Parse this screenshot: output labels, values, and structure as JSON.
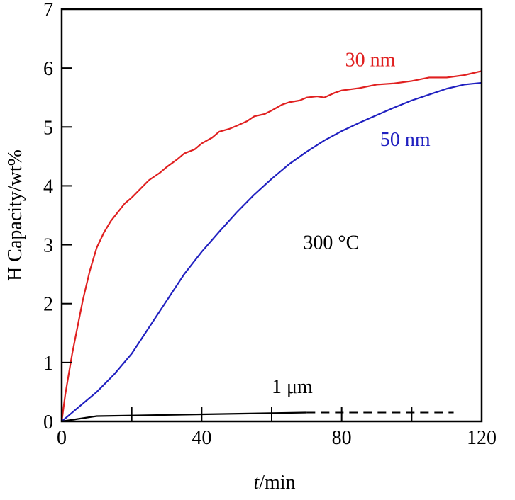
{
  "chart_data": {
    "type": "line",
    "title": "",
    "xlabel_italic": "t",
    "xlabel_rest": "/min",
    "ylabel": "H Capacity/wt%",
    "xlim": [
      0,
      120
    ],
    "ylim": [
      0,
      7
    ],
    "xticks": [
      0,
      40,
      80,
      120
    ],
    "xticks_minor": [
      20,
      60,
      100
    ],
    "yticks": [
      0,
      1,
      2,
      3,
      4,
      5,
      6,
      7
    ],
    "grid": false,
    "series": [
      {
        "name": "30 nm",
        "color": "#e02020",
        "x": [
          0,
          1,
          2,
          3,
          4,
          5,
          6,
          7,
          8,
          9,
          10,
          12,
          14,
          16,
          18,
          20,
          22,
          25,
          28,
          30,
          33,
          35,
          38,
          40,
          43,
          45,
          48,
          50,
          53,
          55,
          58,
          60,
          63,
          65,
          68,
          70,
          73,
          75,
          78,
          80,
          85,
          90,
          95,
          100,
          105,
          110,
          115,
          120
        ],
        "y": [
          0,
          0.45,
          0.8,
          1.15,
          1.45,
          1.75,
          2.05,
          2.3,
          2.55,
          2.75,
          2.95,
          3.2,
          3.4,
          3.55,
          3.7,
          3.8,
          3.92,
          4.1,
          4.22,
          4.32,
          4.45,
          4.55,
          4.62,
          4.72,
          4.82,
          4.92,
          4.97,
          5.02,
          5.1,
          5.18,
          5.22,
          5.28,
          5.38,
          5.42,
          5.45,
          5.5,
          5.52,
          5.5,
          5.58,
          5.62,
          5.66,
          5.72,
          5.74,
          5.78,
          5.84,
          5.84,
          5.88,
          5.95
        ],
        "label_pos": [
          81,
          6.15
        ]
      },
      {
        "name": "50 nm",
        "color": "#2020c0",
        "x": [
          0,
          5,
          10,
          15,
          20,
          25,
          30,
          35,
          40,
          45,
          50,
          55,
          60,
          65,
          70,
          75,
          80,
          85,
          90,
          95,
          100,
          105,
          110,
          115,
          120
        ],
        "y": [
          0,
          0.25,
          0.5,
          0.8,
          1.15,
          1.6,
          2.05,
          2.5,
          2.88,
          3.22,
          3.55,
          3.85,
          4.12,
          4.37,
          4.58,
          4.77,
          4.93,
          5.07,
          5.2,
          5.33,
          5.45,
          5.55,
          5.65,
          5.72,
          5.75
        ],
        "label_pos": [
          91,
          4.8
        ]
      },
      {
        "name": "1 μm",
        "color": "#000000",
        "x": [
          0,
          10,
          20,
          40,
          60,
          70
        ],
        "y": [
          0,
          0.09,
          0.1,
          0.12,
          0.14,
          0.15
        ],
        "dashed_x": [
          70,
          112
        ],
        "dashed_y": [
          0.15,
          0.15
        ],
        "label_pos": [
          60,
          0.6
        ]
      }
    ],
    "annotations": [
      {
        "text": "300 °C",
        "x": 69,
        "y": 3.05
      }
    ]
  }
}
